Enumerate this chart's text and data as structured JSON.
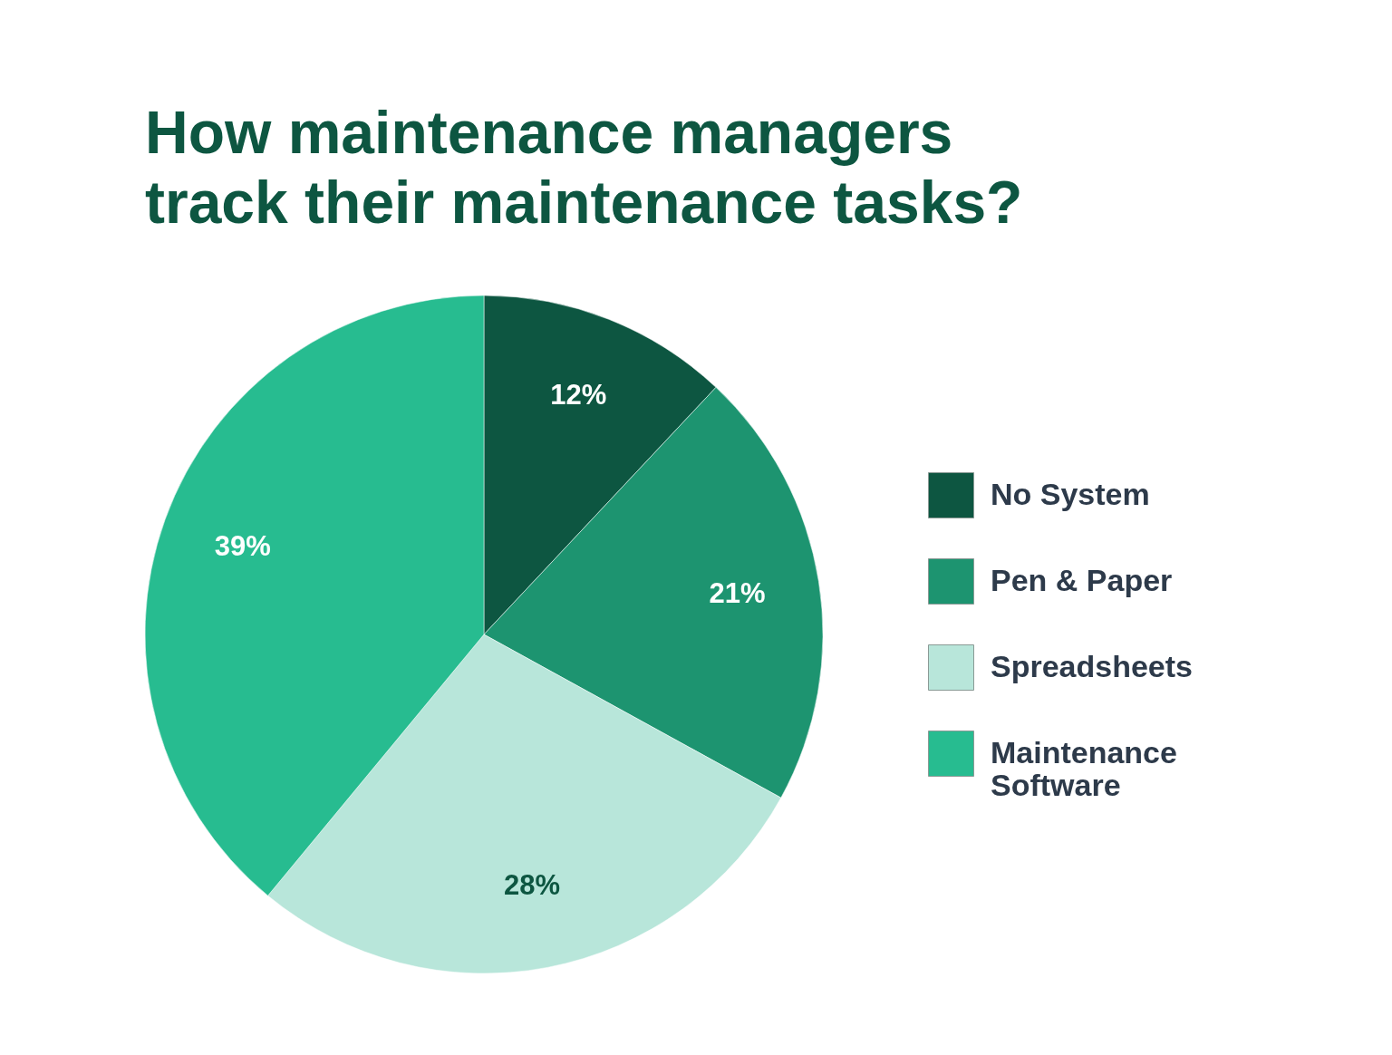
{
  "chart_data": {
    "type": "pie",
    "title": "How maintenance managers track their maintenance tasks?",
    "categories": [
      "No System",
      "Pen & Paper",
      "Spreadsheets",
      "Maintenance Software"
    ],
    "values": [
      12,
      21,
      28,
      39
    ],
    "colors": [
      "#0d5641",
      "#1d9470",
      "#b8e6da",
      "#27bc90"
    ],
    "value_labels": [
      "12%",
      "21%",
      "28%",
      "39%"
    ],
    "legend": "right"
  }
}
